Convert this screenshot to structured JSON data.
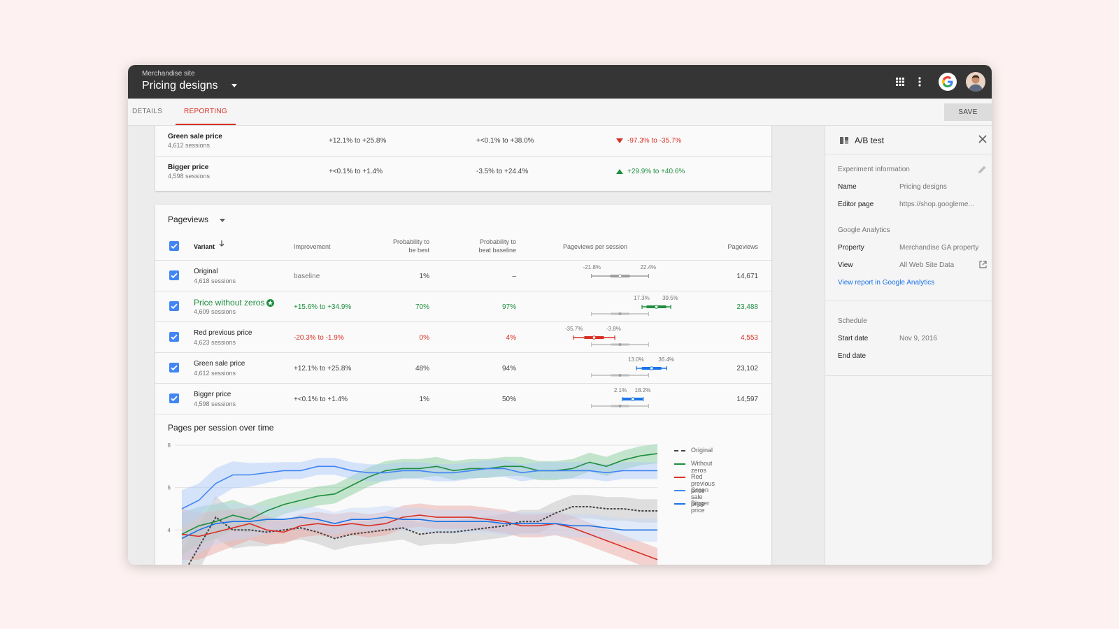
{
  "app": {
    "site_name": "Merchandise site",
    "title": "Pricing designs"
  },
  "tabs": {
    "details": "DETAILS",
    "reporting": "REPORTING",
    "active": "reporting"
  },
  "toolbar": {
    "save_label": "SAVE"
  },
  "top_table": {
    "rows": [
      {
        "name": "Green sale price",
        "sessions": "4,612 sessions",
        "c1": "+12.1% to +25.8%",
        "c2": "+<0.1% to +38.0%",
        "c3": "-97.3% to -35.7%",
        "c3_trend": "down"
      },
      {
        "name": "Bigger price",
        "sessions": "4,598 sessions",
        "c1": "+<0.1% to +1.4%",
        "c2": "-3.5% to +24.4%",
        "c3": "+29.9% to +40.6%",
        "c3_trend": "up"
      }
    ]
  },
  "pageviews_table": {
    "metric": "Pageviews",
    "headers": {
      "variant": "Variant",
      "improvement": "Improvement",
      "prob_best_1": "Probability to",
      "prob_best_2": "be best",
      "prob_base_1": "Probability to",
      "prob_base_2": "beat baseline",
      "per_session": "Pageviews per session",
      "pageviews": "Pageviews"
    },
    "rows": [
      {
        "name": "Original",
        "sessions": "4,618 sessions",
        "improvement": "baseline",
        "prob_best": "1%",
        "prob_baseline": "–",
        "ci_low": "-21.8%",
        "ci_high": "22.4%",
        "pageviews": "14,671",
        "status": "neutral",
        "checked": true
      },
      {
        "name": "Price without zeros",
        "sessions": "4,609 sessions",
        "improvement": "+15.6% to +34.9%",
        "prob_best": "70%",
        "prob_baseline": "97%",
        "ci_low": "17.3%",
        "ci_high": "39.5%",
        "pageviews": "23,488",
        "status": "positive",
        "checked": true
      },
      {
        "name": "Red previous price",
        "sessions": "4,623 sessions",
        "improvement": "-20.3% to -1.9%",
        "prob_best": "0%",
        "prob_baseline": "4%",
        "ci_low": "-35.7%",
        "ci_high": "-3.8%",
        "pageviews": "4,553",
        "status": "negative",
        "checked": true
      },
      {
        "name": "Green sale price",
        "sessions": "4,612 sessions",
        "improvement": "+12.1% to +25.8%",
        "prob_best": "48%",
        "prob_baseline": "94%",
        "ci_low": "13.0%",
        "ci_high": "36.4%",
        "pageviews": "23,102",
        "status": "neutral",
        "checked": true
      },
      {
        "name": "Bigger price",
        "sessions": "4,598 sessions",
        "improvement": "+<0.1% to +1.4%",
        "prob_best": "1%",
        "prob_baseline": "50%",
        "ci_low": "2.1%",
        "ci_high": "18.2%",
        "pageviews": "14,597",
        "status": "neutral",
        "checked": true
      }
    ]
  },
  "chart_data": {
    "type": "line",
    "title": "Pages per session over time",
    "ylim": [
      2,
      8
    ],
    "yticks": [
      8,
      6,
      4,
      2
    ],
    "grid": true,
    "legend_position": "right",
    "x": [
      0,
      1,
      2,
      3,
      4,
      5,
      6,
      7,
      8,
      9,
      10,
      11,
      12,
      13,
      14,
      15,
      16,
      17,
      18,
      19,
      20,
      21,
      22,
      23,
      24,
      25,
      26,
      27,
      28
    ],
    "series": [
      {
        "name": "Original",
        "color": "#424242",
        "dash": true,
        "band": "#bdbdbd",
        "values": [
          1.8,
          3.2,
          4.6,
          4.0,
          4.0,
          3.9,
          4.0,
          4.1,
          3.9,
          3.6,
          3.8,
          3.9,
          4.0,
          4.1,
          3.8,
          3.9,
          3.9,
          4.0,
          4.1,
          4.2,
          4.4,
          4.4,
          4.8,
          5.1,
          5.1,
          5.0,
          5.0,
          4.9,
          4.9
        ]
      },
      {
        "name": "Without zeros",
        "color": "#1e8e3e",
        "band": "#81c995",
        "values": [
          3.8,
          4.2,
          4.4,
          4.7,
          4.5,
          4.9,
          5.2,
          5.4,
          5.6,
          5.7,
          6.1,
          6.5,
          6.8,
          6.9,
          6.9,
          7.0,
          6.8,
          6.9,
          6.9,
          7.0,
          7.0,
          6.8,
          6.8,
          6.9,
          7.2,
          7.0,
          7.3,
          7.5,
          7.6
        ]
      },
      {
        "name": "Red previous price",
        "color": "#d93025",
        "band": "#e8a09b",
        "values": [
          3.8,
          3.7,
          3.9,
          4.1,
          4.3,
          4.0,
          3.9,
          4.2,
          4.3,
          4.2,
          4.3,
          4.2,
          4.3,
          4.6,
          4.7,
          4.6,
          4.6,
          4.6,
          4.5,
          4.4,
          4.2,
          4.2,
          4.3,
          4.1,
          3.8,
          3.5,
          3.2,
          2.9,
          2.6
        ]
      },
      {
        "name": "Green sale price",
        "color": "#4285f4",
        "band": "#a8c7fa",
        "values": [
          5.0,
          5.4,
          6.2,
          6.6,
          6.6,
          6.7,
          6.8,
          6.8,
          7.0,
          7.0,
          6.8,
          6.7,
          6.7,
          6.8,
          6.8,
          6.7,
          6.7,
          6.8,
          6.9,
          6.9,
          6.7,
          6.8,
          6.8,
          6.8,
          6.8,
          6.7,
          6.8,
          6.8,
          6.8
        ]
      },
      {
        "name": "Bigger price",
        "color": "#1a73e8",
        "band": "#c3d7f7",
        "values": [
          3.6,
          4.0,
          4.3,
          4.4,
          4.4,
          4.5,
          4.5,
          4.6,
          4.5,
          4.3,
          4.5,
          4.5,
          4.6,
          4.5,
          4.5,
          4.4,
          4.4,
          4.4,
          4.4,
          4.3,
          4.3,
          4.3,
          4.3,
          4.2,
          4.2,
          4.1,
          4.0,
          4.0,
          4.0
        ]
      }
    ]
  },
  "side_panel": {
    "title": "A/B test",
    "experiment_label": "Experiment information",
    "name_key": "Name",
    "name_value": "Pricing designs",
    "editor_key": "Editor page",
    "editor_value": "https://shop.googleme...",
    "ga_label": "Google Analytics",
    "property_key": "Property",
    "property_value": "Merchandise GA property",
    "view_key": "View",
    "view_value": "All Web Site Data",
    "ga_link": "View report in Google Analytics",
    "schedule_label": "Schedule",
    "start_key": "Start date",
    "start_value": "Nov 9, 2016",
    "end_key": "End date",
    "end_value": ""
  },
  "colors": {
    "accent": "#d93025",
    "positive": "#1e8e3e",
    "negative": "#d93025",
    "checkbox": "#4285f4",
    "link": "#1a73e8",
    "header_bg": "#353535"
  },
  "icons": [
    "dropdown-caret-icon",
    "apps-grid-icon",
    "more-vert-icon",
    "google-logo-icon",
    "avatar",
    "sort-arrow-icon",
    "winner-star-icon",
    "flask-icon",
    "close-icon",
    "edit-icon",
    "open-external-icon"
  ]
}
